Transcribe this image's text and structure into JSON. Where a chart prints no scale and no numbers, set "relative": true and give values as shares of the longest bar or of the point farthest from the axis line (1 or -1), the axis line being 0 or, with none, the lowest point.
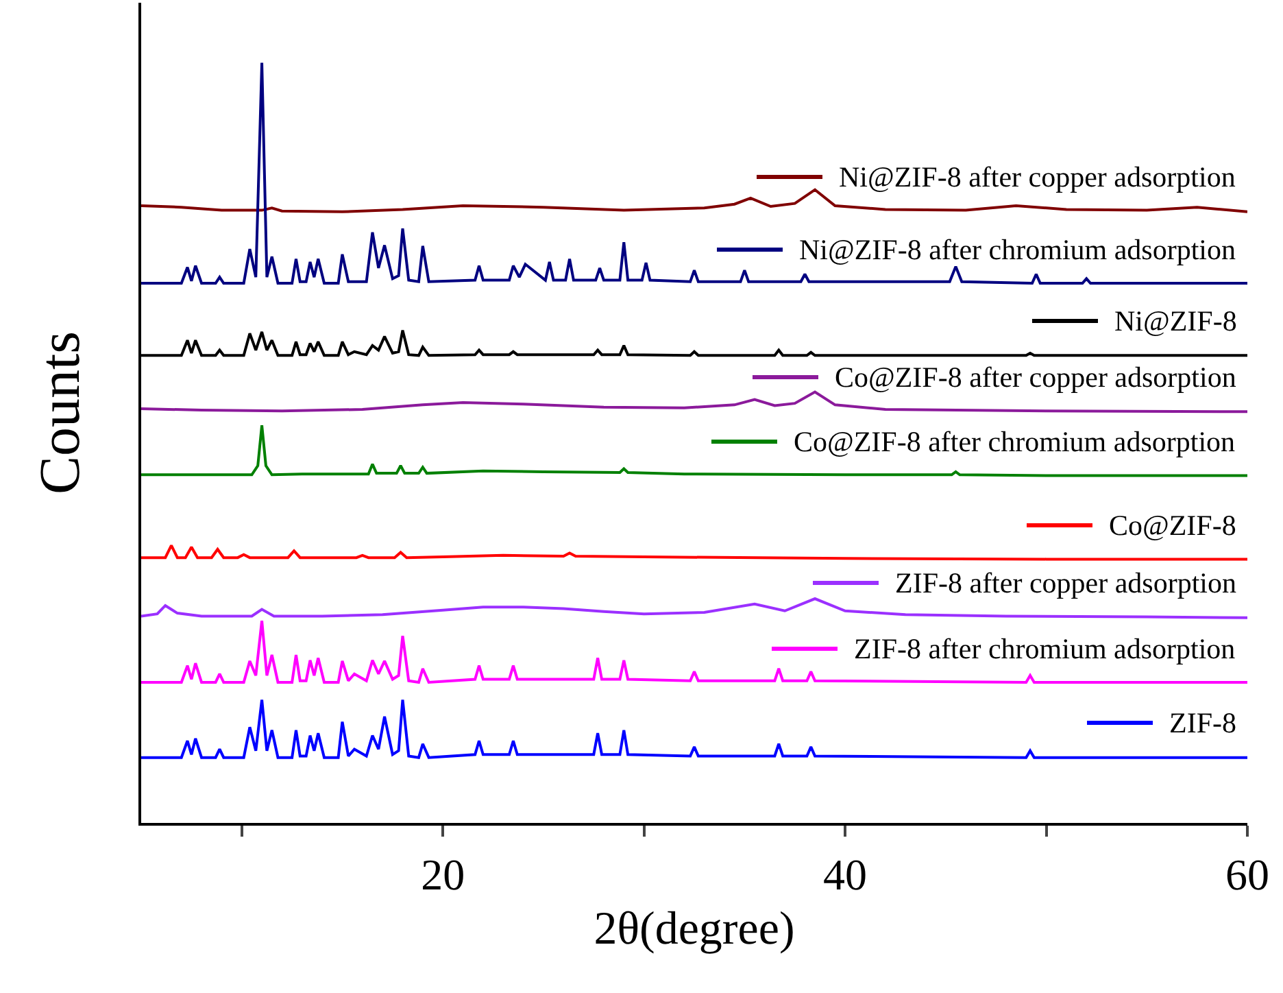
{
  "chart_data": {
    "type": "line",
    "xlabel": "2θ(degree)",
    "ylabel": "Counts",
    "relative": true,
    "xlim": [
      5,
      60
    ],
    "xticks": [
      {
        "value": 10,
        "label": null
      },
      20,
      {
        "value": 30,
        "label": null
      },
      40,
      {
        "value": 50,
        "label": null
      },
      60
    ],
    "grid": false,
    "legend": "right",
    "marker": "none",
    "line_style": "solid",
    "series": [
      {
        "name": "Ni@ZIF-8 after copper adsorption",
        "color": "#800000",
        "x": [
          5,
          7,
          9,
          11,
          11.5,
          12,
          15,
          18,
          21,
          25,
          29,
          33,
          34.5,
          35.3,
          36.3,
          37.5,
          38.5,
          39.5,
          42,
          46,
          48.5,
          51,
          55,
          57.5,
          60
        ],
        "values": [
          0.812,
          0.81,
          0.806,
          0.806,
          0.809,
          0.805,
          0.804,
          0.807,
          0.812,
          0.81,
          0.806,
          0.809,
          0.814,
          0.822,
          0.811,
          0.815,
          0.833,
          0.812,
          0.807,
          0.806,
          0.812,
          0.807,
          0.806,
          0.81,
          0.804
        ]
      },
      {
        "name": "Ni@ZIF-8 after chromium adsorption",
        "color": "#000080",
        "x": [
          5,
          7.0,
          7.3,
          7.5,
          7.7,
          8.0,
          8.7,
          8.9,
          9.1,
          10.1,
          10.4,
          10.7,
          11.0,
          11.25,
          11.5,
          11.8,
          12.5,
          12.7,
          12.9,
          13.2,
          13.4,
          13.6,
          13.8,
          14.1,
          14.8,
          15.0,
          15.3,
          16.2,
          16.5,
          16.8,
          17.1,
          17.5,
          17.8,
          18.0,
          18.3,
          18.8,
          19.0,
          19.3,
          21.6,
          21.8,
          22.0,
          23.3,
          23.5,
          23.8,
          24.1,
          25.1,
          25.3,
          25.5,
          26.1,
          26.3,
          26.5,
          27.6,
          27.8,
          28.0,
          28.8,
          29.0,
          29.2,
          29.9,
          30.1,
          30.3,
          32.3,
          32.5,
          32.7,
          34.8,
          35.0,
          35.2,
          37.8,
          38.0,
          38.2,
          45.2,
          45.5,
          45.8,
          49.3,
          49.5,
          49.7,
          51.8,
          52.0,
          52.2,
          60
        ],
        "values": [
          0.71,
          0.71,
          0.731,
          0.713,
          0.733,
          0.71,
          0.71,
          0.718,
          0.71,
          0.71,
          0.755,
          0.718,
          1.0,
          0.718,
          0.745,
          0.71,
          0.71,
          0.742,
          0.712,
          0.712,
          0.738,
          0.718,
          0.742,
          0.71,
          0.71,
          0.748,
          0.712,
          0.712,
          0.777,
          0.73,
          0.76,
          0.716,
          0.72,
          0.782,
          0.714,
          0.712,
          0.759,
          0.712,
          0.714,
          0.733,
          0.714,
          0.714,
          0.733,
          0.718,
          0.735,
          0.714,
          0.738,
          0.714,
          0.714,
          0.742,
          0.714,
          0.714,
          0.73,
          0.714,
          0.714,
          0.764,
          0.714,
          0.714,
          0.737,
          0.714,
          0.712,
          0.727,
          0.712,
          0.712,
          0.727,
          0.712,
          0.712,
          0.722,
          0.712,
          0.712,
          0.732,
          0.712,
          0.71,
          0.722,
          0.71,
          0.71,
          0.716,
          0.71,
          0.71
        ]
      },
      {
        "name": "Ni@ZIF-8",
        "color": "#000000",
        "x": [
          5,
          7.0,
          7.3,
          7.5,
          7.7,
          8.0,
          8.7,
          8.9,
          9.1,
          10.1,
          10.4,
          10.7,
          11.0,
          11.25,
          11.5,
          11.8,
          12.5,
          12.7,
          12.9,
          13.2,
          13.4,
          13.6,
          13.8,
          14.1,
          14.8,
          15.0,
          15.3,
          15.6,
          16.2,
          16.5,
          16.8,
          17.1,
          17.5,
          17.8,
          18.0,
          18.3,
          18.8,
          19.0,
          19.3,
          21.6,
          21.8,
          22.0,
          23.3,
          23.5,
          23.7,
          27.5,
          27.7,
          27.9,
          28.8,
          29.0,
          29.2,
          32.3,
          32.5,
          32.7,
          36.5,
          36.7,
          36.9,
          38.1,
          38.3,
          38.5,
          49,
          49.2,
          49.4,
          60
        ],
        "values": [
          0.615,
          0.615,
          0.635,
          0.618,
          0.635,
          0.615,
          0.615,
          0.622,
          0.615,
          0.615,
          0.644,
          0.622,
          0.646,
          0.622,
          0.635,
          0.615,
          0.615,
          0.633,
          0.616,
          0.616,
          0.631,
          0.62,
          0.633,
          0.615,
          0.615,
          0.633,
          0.616,
          0.62,
          0.616,
          0.628,
          0.622,
          0.64,
          0.618,
          0.62,
          0.648,
          0.616,
          0.615,
          0.626,
          0.615,
          0.616,
          0.622,
          0.616,
          0.616,
          0.62,
          0.616,
          0.616,
          0.622,
          0.616,
          0.616,
          0.628,
          0.616,
          0.615,
          0.62,
          0.615,
          0.615,
          0.622,
          0.615,
          0.615,
          0.619,
          0.615,
          0.615,
          0.618,
          0.615,
          0.615
        ]
      },
      {
        "name": "Co@ZIF-8 after copper adsorption",
        "color": "#8b1a9b",
        "x": [
          5,
          8,
          12,
          16,
          19,
          21,
          24,
          28,
          32,
          34.5,
          35.5,
          36.5,
          37.5,
          38.5,
          39.5,
          42,
          50,
          60
        ],
        "values": [
          0.545,
          0.543,
          0.542,
          0.544,
          0.55,
          0.553,
          0.551,
          0.547,
          0.546,
          0.55,
          0.557,
          0.549,
          0.552,
          0.567,
          0.55,
          0.544,
          0.542,
          0.541
        ]
      },
      {
        "name": "Co@ZIF-8 after chromium adsorption",
        "color": "#008000",
        "x": [
          5,
          10.5,
          10.8,
          11.0,
          11.2,
          11.5,
          13,
          16.3,
          16.5,
          16.7,
          17.7,
          17.9,
          18.1,
          18.8,
          19.0,
          19.2,
          22,
          25,
          28.8,
          29.0,
          29.2,
          32,
          40,
          45.3,
          45.5,
          45.7,
          50,
          60
        ],
        "values": [
          0.458,
          0.458,
          0.47,
          0.523,
          0.47,
          0.458,
          0.459,
          0.459,
          0.472,
          0.46,
          0.46,
          0.47,
          0.46,
          0.46,
          0.468,
          0.46,
          0.463,
          0.462,
          0.461,
          0.466,
          0.461,
          0.459,
          0.458,
          0.458,
          0.462,
          0.458,
          0.457,
          0.457
        ]
      },
      {
        "name": "Co@ZIF-8",
        "color": "#ff0000",
        "x": [
          5,
          6.2,
          6.5,
          6.8,
          7.2,
          7.5,
          7.8,
          8.5,
          8.8,
          9.1,
          9.8,
          10.1,
          10.4,
          12.3,
          12.6,
          12.9,
          15.7,
          16,
          16.3,
          17.6,
          17.9,
          18.2,
          20,
          23,
          26,
          26.3,
          26.6,
          30,
          40,
          50,
          60
        ],
        "values": [
          0.349,
          0.349,
          0.365,
          0.349,
          0.349,
          0.363,
          0.349,
          0.349,
          0.36,
          0.349,
          0.349,
          0.353,
          0.349,
          0.349,
          0.358,
          0.349,
          0.349,
          0.352,
          0.349,
          0.349,
          0.356,
          0.349,
          0.35,
          0.352,
          0.351,
          0.355,
          0.351,
          0.35,
          0.348,
          0.347,
          0.347
        ]
      },
      {
        "name": "ZIF-8 after copper adsorption",
        "color": "#9b30ff",
        "x": [
          5,
          5.8,
          6.2,
          6.8,
          8,
          10.5,
          11.0,
          11.6,
          14,
          17,
          20,
          22,
          24,
          26,
          28,
          30,
          33,
          35.5,
          37,
          38.5,
          40,
          43,
          48,
          55,
          60
        ],
        "values": [
          0.272,
          0.275,
          0.286,
          0.276,
          0.272,
          0.272,
          0.281,
          0.272,
          0.272,
          0.274,
          0.28,
          0.284,
          0.284,
          0.282,
          0.278,
          0.275,
          0.277,
          0.288,
          0.279,
          0.295,
          0.279,
          0.274,
          0.272,
          0.271,
          0.27
        ]
      },
      {
        "name": "ZIF-8 after chromium adsorption",
        "color": "#ff00ff",
        "x": [
          5,
          7.0,
          7.3,
          7.5,
          7.7,
          8.0,
          8.7,
          8.9,
          9.1,
          10.1,
          10.4,
          10.7,
          11.0,
          11.25,
          11.5,
          11.8,
          12.5,
          12.7,
          12.9,
          13.2,
          13.4,
          13.6,
          13.8,
          14.1,
          14.8,
          15.0,
          15.3,
          15.6,
          16.2,
          16.5,
          16.8,
          17.1,
          17.5,
          17.8,
          18.0,
          18.3,
          18.8,
          19.0,
          19.3,
          21.6,
          21.8,
          22.0,
          23.3,
          23.5,
          23.7,
          27.5,
          27.7,
          27.9,
          28.8,
          29.0,
          29.2,
          32.3,
          32.5,
          32.7,
          36.5,
          36.7,
          36.9,
          38.1,
          38.3,
          38.5,
          49,
          49.2,
          49.4,
          60
        ],
        "values": [
          0.185,
          0.185,
          0.207,
          0.189,
          0.21,
          0.185,
          0.185,
          0.196,
          0.185,
          0.185,
          0.213,
          0.194,
          0.266,
          0.194,
          0.221,
          0.185,
          0.185,
          0.221,
          0.187,
          0.187,
          0.214,
          0.194,
          0.217,
          0.185,
          0.185,
          0.213,
          0.187,
          0.196,
          0.187,
          0.214,
          0.196,
          0.213,
          0.189,
          0.194,
          0.246,
          0.187,
          0.185,
          0.203,
          0.185,
          0.189,
          0.207,
          0.189,
          0.189,
          0.207,
          0.189,
          0.189,
          0.217,
          0.189,
          0.189,
          0.214,
          0.189,
          0.187,
          0.199,
          0.187,
          0.187,
          0.203,
          0.187,
          0.187,
          0.199,
          0.187,
          0.185,
          0.194,
          0.185,
          0.185
        ]
      },
      {
        "name": "ZIF-8",
        "color": "#0000ff",
        "x": [
          5,
          7.0,
          7.3,
          7.5,
          7.7,
          8.0,
          8.7,
          8.9,
          9.1,
          10.1,
          10.4,
          10.7,
          11.0,
          11.25,
          11.5,
          11.8,
          12.5,
          12.7,
          12.9,
          13.2,
          13.4,
          13.6,
          13.8,
          14.1,
          14.8,
          15.0,
          15.3,
          15.6,
          16.2,
          16.5,
          16.8,
          17.1,
          17.5,
          17.8,
          18.0,
          18.3,
          18.8,
          19.0,
          19.3,
          21.6,
          21.8,
          22.0,
          23.3,
          23.5,
          23.7,
          27.5,
          27.7,
          27.9,
          28.8,
          29.0,
          29.2,
          32.3,
          32.5,
          32.7,
          36.5,
          36.7,
          36.9,
          38.1,
          38.3,
          38.5,
          49,
          49.2,
          49.4,
          60
        ],
        "values": [
          0.086,
          0.086,
          0.108,
          0.09,
          0.111,
          0.086,
          0.086,
          0.097,
          0.086,
          0.086,
          0.126,
          0.095,
          0.162,
          0.095,
          0.122,
          0.086,
          0.086,
          0.122,
          0.088,
          0.088,
          0.115,
          0.095,
          0.118,
          0.086,
          0.086,
          0.133,
          0.088,
          0.097,
          0.088,
          0.115,
          0.097,
          0.14,
          0.09,
          0.095,
          0.162,
          0.088,
          0.086,
          0.104,
          0.086,
          0.09,
          0.108,
          0.09,
          0.09,
          0.108,
          0.09,
          0.09,
          0.118,
          0.09,
          0.09,
          0.122,
          0.09,
          0.088,
          0.1,
          0.088,
          0.088,
          0.104,
          0.088,
          0.088,
          0.1,
          0.088,
          0.086,
          0.095,
          0.086,
          0.086
        ]
      }
    ]
  }
}
